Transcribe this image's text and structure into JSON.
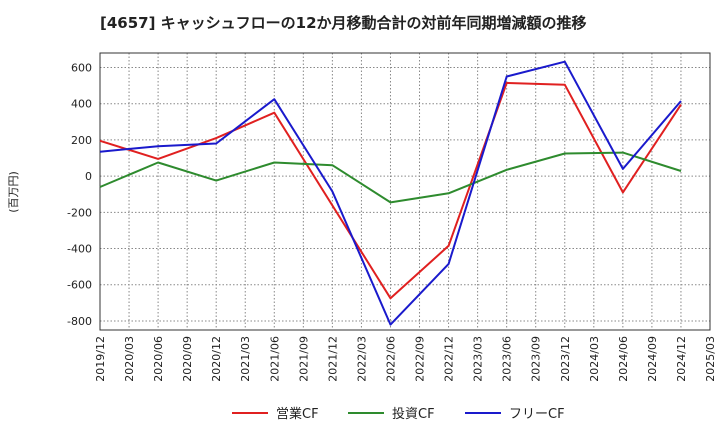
{
  "chart_data": {
    "type": "line",
    "title": "[4657]  キャッシュフローの12か月移動合計の対前年同期増減額の推移",
    "ylabel": "(百万円)",
    "xlabel": "",
    "ylim": [
      -850,
      680
    ],
    "yticks": [
      600,
      400,
      200,
      0,
      -200,
      -400,
      -600,
      -800
    ],
    "x": [
      "2019/12",
      "2020/03",
      "2020/06",
      "2020/09",
      "2020/12",
      "2021/03",
      "2021/06",
      "2021/09",
      "2021/12",
      "2022/03",
      "2022/06",
      "2022/09",
      "2022/12",
      "2023/03",
      "2023/06",
      "2023/09",
      "2023/12",
      "2024/03",
      "2024/06",
      "2024/09",
      "2024/12",
      "2025/03"
    ],
    "grid": true,
    "legend_position": "bottom",
    "series": [
      {
        "name": "営業CF",
        "color": "#e02020",
        "points": [
          [
            "2019/12",
            195
          ],
          [
            "2020/06",
            95
          ],
          [
            "2020/12",
            210
          ],
          [
            "2021/06",
            350
          ],
          [
            "2022/06",
            -675
          ],
          [
            "2022/12",
            -385
          ],
          [
            "2023/06",
            515
          ],
          [
            "2023/12",
            505
          ],
          [
            "2024/06",
            -90
          ],
          [
            "2024/12",
            395
          ]
        ]
      },
      {
        "name": "投資CF",
        "color": "#2e8b2e",
        "points": [
          [
            "2019/12",
            -60
          ],
          [
            "2020/06",
            75
          ],
          [
            "2020/12",
            -25
          ],
          [
            "2021/06",
            75
          ],
          [
            "2021/12",
            60
          ],
          [
            "2022/06",
            -145
          ],
          [
            "2022/12",
            -95
          ],
          [
            "2023/06",
            35
          ],
          [
            "2023/12",
            125
          ],
          [
            "2024/06",
            130
          ],
          [
            "2024/12",
            28
          ]
        ]
      },
      {
        "name": "フリーCF",
        "color": "#1a1acc",
        "points": [
          [
            "2019/12",
            135
          ],
          [
            "2020/06",
            165
          ],
          [
            "2020/12",
            180
          ],
          [
            "2021/06",
            425
          ],
          [
            "2021/12",
            -85
          ],
          [
            "2022/06",
            -820
          ],
          [
            "2022/12",
            -485
          ],
          [
            "2023/06",
            550
          ],
          [
            "2023/12",
            632
          ],
          [
            "2024/06",
            40
          ],
          [
            "2024/12",
            415
          ]
        ]
      }
    ]
  }
}
